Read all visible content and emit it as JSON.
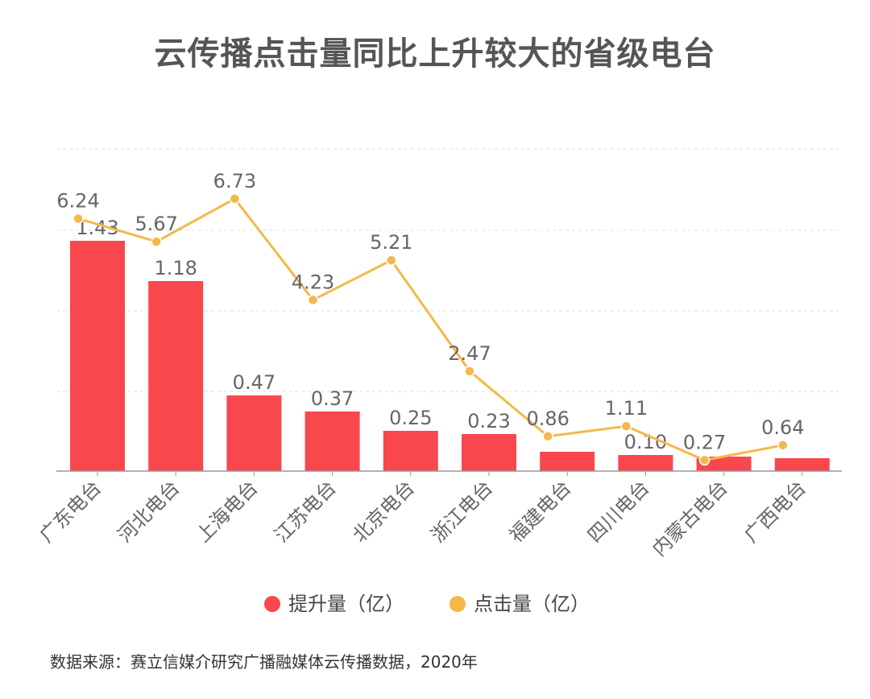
{
  "title": "云传播点击量同比上升较大的省级电台",
  "source": "数据来源：赛立信媒介研究广播融媒体云传播数据，2020年",
  "colors": {
    "bar": "#F9474E",
    "line": "#F5B84A",
    "grid": "#DDDDDD",
    "axis": "#999999",
    "label": "#666666"
  },
  "chart_data": {
    "type": "bar",
    "categories": [
      "广东电台",
      "河北电台",
      "上海电台",
      "江苏电台",
      "北京电台",
      "浙江电台",
      "福建电台",
      "四川电台",
      "内蒙古电台",
      "广西电台"
    ],
    "series": [
      {
        "name": "提升量（亿）",
        "type": "bar",
        "values": [
          1.43,
          1.18,
          0.47,
          0.37,
          0.25,
          0.23,
          0.12,
          0.1,
          0.09,
          0.08
        ],
        "labels": [
          "1.43",
          "1.18",
          "0.47",
          "0.37",
          "0.25",
          "0.23",
          "",
          "0.10",
          "",
          ""
        ]
      },
      {
        "name": "点击量（亿）",
        "type": "line",
        "values": [
          6.24,
          5.67,
          6.73,
          4.23,
          5.21,
          2.47,
          0.86,
          1.11,
          0.27,
          0.64
        ],
        "labels": [
          "6.24",
          "5.67",
          "6.73",
          "4.23",
          "5.21",
          "2.47",
          "0.86",
          "1.11",
          "0.27",
          "0.64"
        ]
      }
    ],
    "bar_axis_range": [
      0,
      1.43
    ],
    "line_axis_range": [
      0,
      8
    ],
    "grid": true,
    "legend_position": "bottom"
  }
}
